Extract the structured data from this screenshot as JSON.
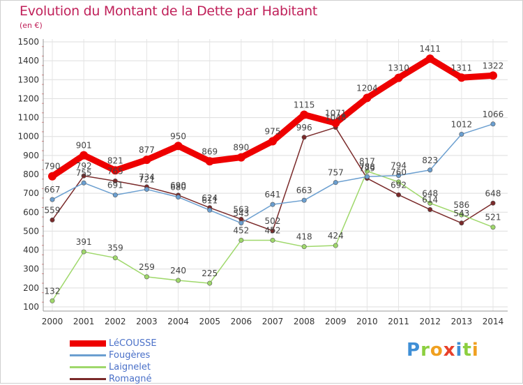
{
  "title": "Evolution du Montant de la Dette par Habitant",
  "subtitle": "(en €)",
  "brand": {
    "letters": [
      "P",
      "r",
      "o",
      "x",
      "i",
      "t",
      "i"
    ],
    "colors": [
      "#3f8fd6",
      "#8ccf3f",
      "#f0a020",
      "#e8402a",
      "#3f8fd6",
      "#8ccf3f",
      "#f0a020"
    ]
  },
  "chart_data": {
    "type": "line",
    "title": "Evolution du Montant de la Dette par Habitant",
    "xlabel": "",
    "ylabel": "(en €)",
    "x": [
      "2000",
      "2001",
      "2002",
      "2003",
      "2004",
      "2005",
      "2006",
      "2007",
      "2008",
      "2009",
      "2010",
      "2011",
      "2012",
      "2013",
      "2014"
    ],
    "ylim": [
      100,
      1500
    ],
    "yticks": [
      "100",
      "200",
      "300",
      "400",
      "500",
      "600",
      "700",
      "800",
      "900",
      "1000",
      "1100",
      "1200",
      "1300",
      "1400",
      "1500"
    ],
    "grid": true,
    "legend_position": "bottom-left",
    "series": [
      {
        "name": "LéCOUSSE",
        "color": "#ee0000",
        "values": [
          790,
          901,
          821,
          877,
          950,
          869,
          890,
          975,
          1115,
          1071,
          1204,
          1310,
          1411,
          1311,
          1322
        ],
        "labels": [
          "790",
          "901",
          "821",
          "877",
          "950",
          "869",
          "890",
          "975",
          "1115",
          "1071",
          "1204",
          "1310",
          "1411",
          "1311",
          "1322"
        ]
      },
      {
        "name": "Fougères",
        "color": "#6b9fd0",
        "values": [
          667,
          755,
          691,
          721,
          680,
          611,
          543,
          641,
          663,
          757,
          788,
          794,
          823,
          1012,
          1066
        ],
        "labels": [
          "667",
          "755",
          "691",
          "721",
          "680",
          "611",
          "543",
          "641",
          "663",
          "757",
          "788",
          "794",
          "823",
          "1012",
          "1066"
        ]
      },
      {
        "name": "Laignelet",
        "color": "#9fd86b",
        "values": [
          132,
          391,
          359,
          259,
          240,
          225,
          452,
          452,
          418,
          424,
          817,
          760,
          648,
          586,
          521
        ],
        "labels": [
          "132",
          "391",
          "359",
          "259",
          "240",
          "225",
          "452",
          "452",
          "418",
          "424",
          "817",
          "760",
          "648",
          "586",
          "521"
        ]
      },
      {
        "name": "Romagné",
        "color": "#7a2a2a",
        "values": [
          559,
          792,
          765,
          734,
          690,
          624,
          563,
          502,
          996,
          1048,
          779,
          692,
          614,
          543,
          648
        ],
        "labels": [
          "559",
          "792",
          "765",
          "734",
          "690",
          "624",
          "563",
          "502",
          "996",
          "1048",
          "779",
          "692",
          "614",
          "543",
          "648"
        ]
      }
    ]
  }
}
